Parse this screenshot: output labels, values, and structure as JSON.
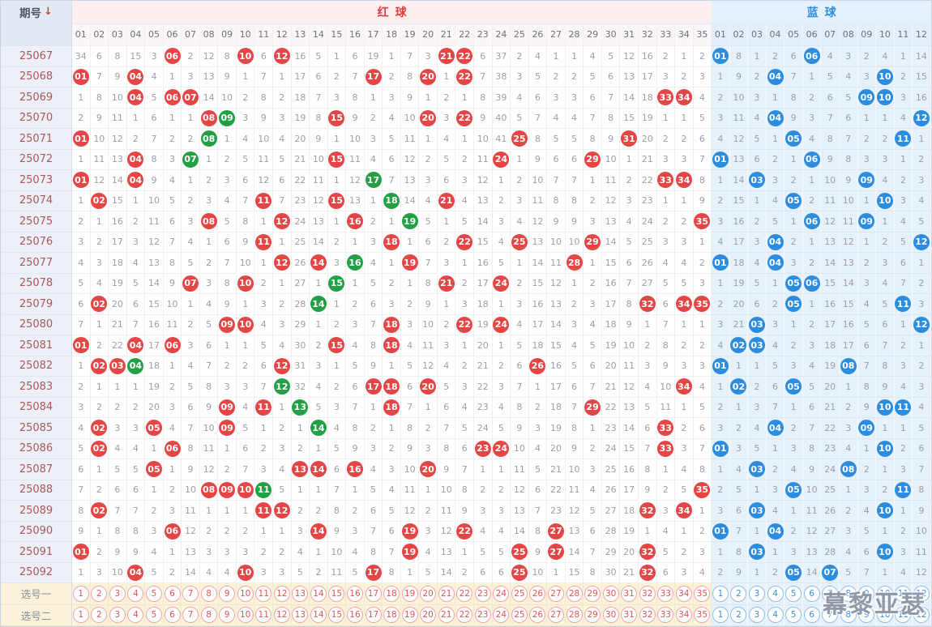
{
  "header": {
    "period_label": "期号",
    "arrow": "↓",
    "red_label": "红球",
    "blue_label": "蓝球",
    "red_cols": [
      "01",
      "02",
      "03",
      "04",
      "05",
      "06",
      "07",
      "08",
      "09",
      "10",
      "11",
      "12",
      "13",
      "14",
      "15",
      "16",
      "17",
      "18",
      "19",
      "20",
      "21",
      "22",
      "23",
      "24",
      "25",
      "26",
      "27",
      "28",
      "29",
      "30",
      "31",
      "32",
      "33",
      "34",
      "35"
    ],
    "blue_cols": [
      "01",
      "02",
      "03",
      "04",
      "05",
      "06",
      "07",
      "08",
      "09",
      "10",
      "11",
      "12"
    ]
  },
  "colors": {
    "red_ball": "#e64545",
    "green_ball": "#22a045",
    "blue_ball": "#2b8ce0",
    "red_header_text": "#e03c3c",
    "blue_header_text": "#2e8de0",
    "period_text": "#b35555",
    "miss_text": "#9aa0ab"
  },
  "rows": [
    {
      "period": "25067",
      "red": [
        34,
        6,
        8,
        15,
        3,
        "R06",
        2,
        12,
        8,
        "R10",
        6,
        "R12",
        16,
        5,
        1,
        6,
        19,
        1,
        7,
        3,
        "R21",
        "R22",
        6,
        37,
        2,
        4,
        1,
        1,
        4,
        5,
        12,
        16,
        2,
        1,
        2
      ],
      "blue": [
        "B01",
        8,
        1,
        2,
        6,
        "B06",
        4,
        3,
        2,
        4,
        1,
        14
      ]
    },
    {
      "period": "25068",
      "red": [
        "R01",
        7,
        9,
        "R04",
        4,
        1,
        3,
        13,
        9,
        1,
        7,
        1,
        17,
        6,
        2,
        7,
        "R17",
        2,
        8,
        "R20",
        1,
        "R22",
        7,
        38,
        3,
        5,
        2,
        2,
        5,
        6,
        13,
        17,
        3,
        2,
        3
      ],
      "blue": [
        1,
        9,
        2,
        "B04",
        7,
        1,
        5,
        4,
        3,
        "B10",
        2,
        15
      ]
    },
    {
      "period": "25069",
      "red": [
        1,
        8,
        10,
        "R04",
        5,
        "R06",
        "R07",
        14,
        10,
        2,
        8,
        2,
        18,
        7,
        3,
        8,
        1,
        3,
        9,
        1,
        2,
        1,
        8,
        39,
        4,
        6,
        3,
        3,
        6,
        7,
        14,
        18,
        "R33",
        "R34",
        4
      ],
      "blue": [
        2,
        10,
        3,
        1,
        8,
        2,
        6,
        5,
        "B09",
        "B10",
        3,
        16
      ]
    },
    {
      "period": "25070",
      "red": [
        2,
        9,
        11,
        1,
        6,
        1,
        1,
        "R08",
        "G09",
        3,
        9,
        3,
        19,
        8,
        "R15",
        9,
        2,
        4,
        10,
        "R20",
        3,
        "R22",
        9,
        40,
        5,
        7,
        4,
        4,
        7,
        8,
        15,
        19,
        1,
        1,
        5
      ],
      "blue": [
        3,
        11,
        4,
        "B04",
        9,
        3,
        7,
        6,
        1,
        1,
        4,
        "B12"
      ]
    },
    {
      "period": "25071",
      "red": [
        "R01",
        10,
        12,
        2,
        7,
        2,
        2,
        "G08",
        1,
        4,
        10,
        4,
        20,
        9,
        1,
        10,
        3,
        5,
        11,
        1,
        4,
        1,
        10,
        41,
        "R25",
        8,
        5,
        5,
        8,
        9,
        "R31",
        20,
        2,
        2,
        6
      ],
      "blue": [
        4,
        12,
        5,
        1,
        "B05",
        4,
        8,
        7,
        2,
        2,
        "B11",
        1
      ]
    },
    {
      "period": "25072",
      "red": [
        1,
        11,
        13,
        "R04",
        8,
        3,
        "G07",
        1,
        2,
        5,
        11,
        5,
        21,
        10,
        "R15",
        11,
        4,
        6,
        12,
        2,
        5,
        2,
        11,
        "R24",
        1,
        9,
        6,
        6,
        "R29",
        10,
        1,
        21,
        3,
        3,
        7
      ],
      "blue": [
        "B01",
        13,
        6,
        2,
        1,
        "B06",
        9,
        8,
        3,
        3,
        1,
        2
      ]
    },
    {
      "period": "25073",
      "red": [
        "R01",
        12,
        14,
        "R04",
        9,
        4,
        1,
        2,
        3,
        6,
        12,
        6,
        22,
        11,
        1,
        12,
        "G17",
        7,
        13,
        3,
        6,
        3,
        12,
        1,
        2,
        10,
        7,
        7,
        1,
        11,
        2,
        22,
        "R33",
        "R34",
        8
      ],
      "blue": [
        1,
        14,
        "B03",
        3,
        2,
        1,
        10,
        9,
        "B09",
        4,
        2,
        3
      ]
    },
    {
      "period": "25074",
      "red": [
        1,
        "R02",
        15,
        1,
        10,
        5,
        2,
        3,
        4,
        7,
        "R11",
        7,
        23,
        12,
        "R15",
        13,
        1,
        "G18",
        14,
        4,
        "R21",
        4,
        13,
        2,
        3,
        11,
        8,
        8,
        2,
        12,
        3,
        23,
        1,
        1,
        9
      ],
      "blue": [
        2,
        15,
        1,
        4,
        "B05",
        2,
        11,
        10,
        1,
        "B10",
        3,
        4
      ]
    },
    {
      "period": "25075",
      "red": [
        2,
        1,
        16,
        2,
        11,
        6,
        3,
        "R08",
        5,
        8,
        1,
        "R12",
        24,
        13,
        1,
        "R16",
        2,
        1,
        "G19",
        5,
        1,
        5,
        14,
        3,
        4,
        12,
        9,
        9,
        3,
        13,
        4,
        24,
        2,
        2,
        "R35"
      ],
      "blue": [
        3,
        16,
        2,
        5,
        1,
        "B06",
        12,
        11,
        "B09",
        1,
        4,
        5
      ]
    },
    {
      "period": "25076",
      "red": [
        3,
        2,
        17,
        3,
        12,
        7,
        4,
        1,
        6,
        9,
        "R11",
        1,
        25,
        14,
        2,
        1,
        3,
        "R18",
        1,
        6,
        2,
        "R22",
        15,
        4,
        "R25",
        13,
        10,
        10,
        "R29",
        14,
        5,
        25,
        3,
        3,
        1
      ],
      "blue": [
        4,
        17,
        3,
        "B04",
        2,
        1,
        13,
        12,
        1,
        2,
        5,
        "B12"
      ]
    },
    {
      "period": "25077",
      "red": [
        4,
        3,
        18,
        4,
        13,
        8,
        5,
        2,
        7,
        10,
        1,
        "R12",
        26,
        "R14",
        3,
        "G16",
        4,
        1,
        "R19",
        7,
        3,
        1,
        16,
        5,
        1,
        14,
        11,
        "R28",
        1,
        15,
        6,
        26,
        4,
        4,
        2
      ],
      "blue": [
        "B01",
        18,
        4,
        "B04",
        3,
        2,
        14,
        13,
        2,
        3,
        6,
        1
      ]
    },
    {
      "period": "25078",
      "red": [
        5,
        4,
        19,
        5,
        14,
        9,
        "R07",
        3,
        8,
        "R10",
        2,
        1,
        27,
        1,
        "G15",
        1,
        5,
        2,
        1,
        8,
        "R21",
        2,
        17,
        "R24",
        2,
        15,
        12,
        1,
        2,
        16,
        7,
        27,
        5,
        5,
        3
      ],
      "blue": [
        1,
        19,
        5,
        1,
        "B05",
        "B06",
        15,
        14,
        3,
        4,
        7,
        2
      ]
    },
    {
      "period": "25079",
      "red": [
        6,
        "R02",
        20,
        6,
        15,
        10,
        1,
        4,
        9,
        1,
        3,
        2,
        28,
        "G14",
        1,
        2,
        6,
        3,
        2,
        9,
        1,
        3,
        18,
        1,
        3,
        16,
        13,
        2,
        3,
        17,
        8,
        "R32",
        6,
        "R34",
        "R35"
      ],
      "blue": [
        2,
        20,
        6,
        2,
        "B05",
        1,
        16,
        15,
        4,
        5,
        "B11",
        3
      ]
    },
    {
      "period": "25080",
      "red": [
        7,
        1,
        21,
        7,
        16,
        11,
        2,
        5,
        "R09",
        "R10",
        4,
        3,
        29,
        1,
        2,
        3,
        7,
        "R18",
        3,
        10,
        2,
        "R22",
        19,
        "R24",
        4,
        17,
        14,
        3,
        4,
        18,
        9,
        1,
        7,
        1,
        1
      ],
      "blue": [
        3,
        21,
        "B03",
        3,
        1,
        2,
        17,
        16,
        5,
        6,
        1,
        "B12"
      ]
    },
    {
      "period": "25081",
      "red": [
        "R01",
        2,
        22,
        "R04",
        17,
        "R06",
        3,
        6,
        1,
        1,
        5,
        4,
        30,
        2,
        "R15",
        4,
        8,
        "R18",
        4,
        11,
        3,
        1,
        20,
        1,
        5,
        18,
        15,
        4,
        5,
        19,
        10,
        2,
        8,
        2,
        2
      ],
      "blue": [
        4,
        "B02",
        "B03",
        4,
        2,
        3,
        18,
        17,
        6,
        7,
        2,
        1
      ]
    },
    {
      "period": "25082",
      "red": [
        1,
        "R02",
        "R03",
        "G04",
        18,
        1,
        4,
        7,
        2,
        2,
        6,
        "R12",
        31,
        3,
        1,
        5,
        9,
        1,
        5,
        12,
        4,
        2,
        21,
        2,
        6,
        "R26",
        16,
        5,
        6,
        20,
        11,
        3,
        9,
        3,
        3
      ],
      "blue": [
        "B01",
        1,
        1,
        5,
        3,
        4,
        19,
        "B08",
        7,
        8,
        3,
        2
      ]
    },
    {
      "period": "25083",
      "red": [
        2,
        1,
        1,
        1,
        19,
        2,
        5,
        8,
        3,
        3,
        7,
        "G12",
        32,
        4,
        2,
        6,
        "R17",
        "R18",
        6,
        "R20",
        5,
        3,
        22,
        3,
        7,
        1,
        17,
        6,
        7,
        21,
        12,
        4,
        10,
        "R34",
        4
      ],
      "blue": [
        1,
        "B02",
        2,
        6,
        "B05",
        5,
        20,
        1,
        8,
        9,
        4,
        3
      ]
    },
    {
      "period": "25084",
      "red": [
        3,
        2,
        2,
        2,
        20,
        3,
        6,
        9,
        "R09",
        4,
        "R11",
        1,
        "G13",
        5,
        3,
        7,
        1,
        "R18",
        7,
        1,
        6,
        4,
        23,
        4,
        8,
        2,
        18,
        7,
        "R29",
        22,
        13,
        5,
        11,
        1,
        5
      ],
      "blue": [
        2,
        1,
        3,
        7,
        1,
        6,
        21,
        2,
        9,
        "B10",
        "B11",
        4
      ]
    },
    {
      "period": "25085",
      "red": [
        4,
        "R02",
        3,
        3,
        "R05",
        4,
        7,
        10,
        "R09",
        5,
        1,
        2,
        1,
        "G14",
        4,
        8,
        2,
        1,
        8,
        2,
        7,
        5,
        24,
        5,
        9,
        3,
        19,
        8,
        1,
        23,
        14,
        6,
        "R33",
        2,
        6
      ],
      "blue": [
        3,
        2,
        4,
        "B04",
        2,
        7,
        22,
        3,
        "B09",
        1,
        1,
        5
      ]
    },
    {
      "period": "25086",
      "red": [
        5,
        "R02",
        4,
        4,
        1,
        "R06",
        8,
        11,
        1,
        6,
        2,
        3,
        2,
        1,
        5,
        9,
        3,
        2,
        9,
        3,
        8,
        6,
        "R23",
        "R24",
        10,
        4,
        20,
        9,
        2,
        24,
        15,
        7,
        "R33",
        3,
        7
      ],
      "blue": [
        "B01",
        3,
        5,
        1,
        3,
        8,
        23,
        4,
        1,
        "B10",
        2,
        6
      ]
    },
    {
      "period": "25087",
      "red": [
        6,
        1,
        5,
        5,
        "R05",
        1,
        9,
        12,
        2,
        7,
        3,
        4,
        "R13",
        "R14",
        6,
        "R16",
        4,
        3,
        10,
        "R20",
        9,
        7,
        1,
        1,
        11,
        5,
        21,
        10,
        3,
        25,
        16,
        8,
        1,
        4,
        8
      ],
      "blue": [
        1,
        4,
        "B03",
        2,
        4,
        9,
        24,
        "B08",
        2,
        1,
        3,
        7
      ]
    },
    {
      "period": "25088",
      "red": [
        7,
        2,
        6,
        6,
        1,
        2,
        10,
        "R08",
        "R09",
        "R10",
        "G11",
        5,
        1,
        1,
        7,
        1,
        5,
        4,
        11,
        1,
        10,
        8,
        2,
        2,
        12,
        6,
        22,
        11,
        4,
        26,
        17,
        9,
        2,
        5,
        "R35"
      ],
      "blue": [
        2,
        5,
        1,
        3,
        "B05",
        10,
        25,
        1,
        3,
        2,
        "B11",
        8
      ]
    },
    {
      "period": "25089",
      "red": [
        8,
        "R02",
        7,
        7,
        2,
        3,
        11,
        1,
        1,
        1,
        "R11",
        "R12",
        2,
        2,
        8,
        2,
        6,
        5,
        12,
        2,
        11,
        9,
        3,
        3,
        13,
        7,
        23,
        12,
        5,
        27,
        18,
        "R32",
        3,
        "R34",
        1
      ],
      "blue": [
        3,
        6,
        "B03",
        4,
        1,
        11,
        26,
        2,
        4,
        "B10",
        1,
        9
      ]
    },
    {
      "period": "25090",
      "red": [
        9,
        1,
        8,
        8,
        3,
        "R06",
        12,
        2,
        2,
        2,
        1,
        1,
        3,
        "R14",
        9,
        3,
        7,
        6,
        "R19",
        3,
        12,
        "R22",
        4,
        4,
        14,
        8,
        "R27",
        13,
        6,
        28,
        19,
        1,
        4,
        1,
        2
      ],
      "blue": [
        "B01",
        7,
        1,
        "B04",
        2,
        12,
        27,
        3,
        5,
        1,
        2,
        10
      ]
    },
    {
      "period": "25091",
      "red": [
        "R01",
        2,
        9,
        9,
        4,
        1,
        13,
        3,
        3,
        3,
        2,
        2,
        4,
        1,
        10,
        4,
        8,
        7,
        "R19",
        4,
        13,
        1,
        5,
        5,
        "R25",
        9,
        "R27",
        14,
        7,
        29,
        20,
        "R32",
        5,
        2,
        3
      ],
      "blue": [
        1,
        8,
        "B03",
        1,
        3,
        13,
        28,
        4,
        6,
        "B10",
        3,
        11
      ]
    },
    {
      "period": "25092",
      "red": [
        1,
        3,
        10,
        "R04",
        5,
        2,
        14,
        4,
        4,
        "R10",
        3,
        3,
        5,
        2,
        11,
        5,
        "R17",
        8,
        1,
        5,
        14,
        2,
        6,
        6,
        "R25",
        10,
        1,
        15,
        8,
        30,
        21,
        "R32",
        6,
        3,
        4
      ],
      "blue": [
        2,
        9,
        1,
        2,
        "B05",
        14,
        "B07",
        5,
        7,
        1,
        4,
        12
      ]
    }
  ],
  "selection_rows": [
    {
      "label": "选号一",
      "red": [
        1,
        2,
        3,
        4,
        5,
        6,
        7,
        8,
        9,
        10,
        11,
        12,
        13,
        14,
        15,
        16,
        17,
        18,
        19,
        20,
        21,
        22,
        23,
        24,
        25,
        26,
        27,
        28,
        29,
        30,
        31,
        32,
        33,
        34,
        35
      ],
      "blue": [
        1,
        2,
        3,
        4,
        5,
        6,
        7,
        8,
        9,
        10,
        11,
        12
      ]
    },
    {
      "label": "选号二",
      "red": [
        1,
        2,
        3,
        4,
        5,
        6,
        7,
        8,
        9,
        10,
        11,
        12,
        13,
        14,
        15,
        16,
        17,
        18,
        19,
        20,
        21,
        22,
        23,
        24,
        25,
        26,
        27,
        28,
        29,
        30,
        31,
        32,
        33,
        34,
        35
      ],
      "blue": [
        1,
        2,
        3,
        4,
        5,
        6,
        7,
        8,
        9,
        10,
        11,
        12
      ]
    }
  ],
  "watermark": "幕黎亚瑟"
}
